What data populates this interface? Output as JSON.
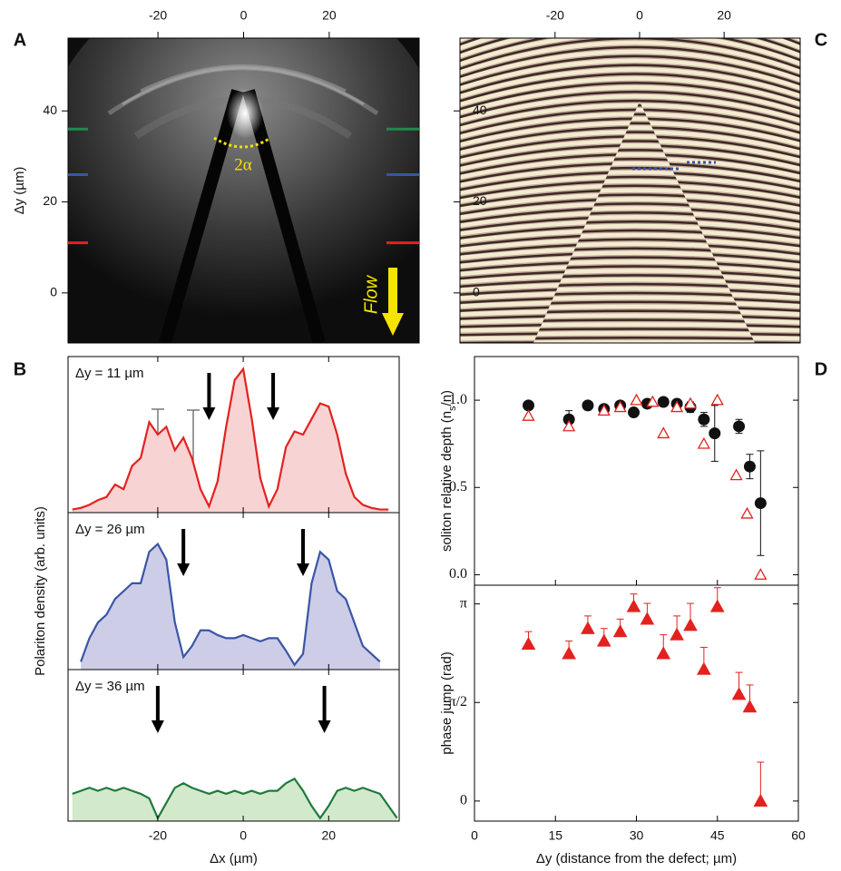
{
  "chart_data": [
    {
      "type": "image",
      "label": "A",
      "xlim": [
        -41,
        41
      ],
      "xticks": [
        -20,
        0,
        20
      ],
      "ylim": [
        -11,
        56
      ],
      "yticks": [
        0,
        20,
        40
      ],
      "ylabel": "Δy (µm)",
      "annotations": [
        "2α",
        "Flow"
      ],
      "profile_marks": {
        "values": [
          11,
          26,
          36
        ],
        "colors": [
          "#e3221f",
          "#3a55a4",
          "#1f8a4c"
        ]
      }
    },
    {
      "type": "image",
      "label": "C",
      "xlim": [
        -42.5,
        38
      ],
      "xticks": [
        -20,
        0,
        20
      ],
      "ylim": [
        -11,
        56
      ],
      "yticks": [
        0,
        20,
        40
      ]
    },
    {
      "type": "area",
      "label": "B",
      "annotation": "Δy = 11 µm",
      "n_label": "n",
      "ns_label": [
        "n",
        "s"
      ],
      "xlim": [
        -41,
        36.5
      ],
      "ylim": [
        0,
        1
      ],
      "x": [
        -40,
        -38,
        -36,
        -34,
        -32,
        -30,
        -28,
        -26,
        -24,
        -22,
        -20,
        -18,
        -16,
        -14,
        -12,
        -10,
        -8,
        -6,
        -4,
        -2,
        0,
        2,
        4,
        6,
        8,
        10,
        12,
        14,
        16,
        18,
        20,
        22,
        24,
        26,
        28,
        30,
        32,
        34,
        36
      ],
      "series": [
        {
          "color": "#e3221f",
          "fill_color": "#f8d3d3",
          "values": [
            0.02,
            0.03,
            0.05,
            0.08,
            0.1,
            0.18,
            0.15,
            0.3,
            0.35,
            0.58,
            0.5,
            0.55,
            0.4,
            0.48,
            0.35,
            0.15,
            0.04,
            0.2,
            0.55,
            0.85,
            0.92,
            0.6,
            0.22,
            0.04,
            0.15,
            0.42,
            0.52,
            0.5,
            0.6,
            0.7,
            0.68,
            0.5,
            0.25,
            0.1,
            0.05,
            0.03,
            0.02,
            0.02,
            null
          ]
        }
      ],
      "arrows": [
        -8,
        7
      ]
    },
    {
      "type": "area",
      "annotation": "Δy = 26 µm",
      "ylabel": "Polariton density (arb. units)",
      "xlim": [
        -41,
        36.5
      ],
      "ylim": [
        0,
        1
      ],
      "x": [
        -40,
        -38,
        -36,
        -34,
        -32,
        -30,
        -28,
        -26,
        -24,
        -22,
        -20,
        -18,
        -16,
        -14,
        -12,
        -10,
        -8,
        -6,
        -4,
        -2,
        0,
        2,
        4,
        6,
        8,
        10,
        12,
        14,
        16,
        18,
        20,
        22,
        24,
        26,
        28,
        30,
        32,
        34,
        36
      ],
      "series": [
        {
          "color": "#3a55a4",
          "fill_color": "#cdcde8",
          "values": [
            null,
            0.05,
            0.2,
            0.3,
            0.35,
            0.45,
            0.5,
            0.55,
            0.55,
            0.75,
            0.8,
            0.7,
            0.3,
            0.08,
            0.15,
            0.25,
            0.25,
            0.22,
            0.2,
            0.2,
            0.22,
            0.2,
            0.18,
            0.2,
            0.2,
            0.12,
            0.03,
            0.1,
            0.55,
            0.75,
            0.7,
            0.5,
            0.45,
            0.3,
            0.15,
            0.1,
            0.05,
            null,
            null
          ]
        }
      ],
      "arrows": [
        -14,
        14
      ]
    },
    {
      "type": "area",
      "annotation": "Δy = 36 µm",
      "xlabel": "Δx (µm)",
      "xlim": [
        -41,
        36.5
      ],
      "xticks": [
        -20,
        0,
        20
      ],
      "ylim": [
        0,
        1
      ],
      "x": [
        -40,
        -38,
        -36,
        -34,
        -32,
        -30,
        -28,
        -26,
        -24,
        -22,
        -20,
        -18,
        -16,
        -14,
        -12,
        -10,
        -8,
        -6,
        -4,
        -2,
        0,
        2,
        4,
        6,
        8,
        10,
        12,
        14,
        16,
        18,
        20,
        22,
        24,
        26,
        28,
        30,
        32,
        34,
        36
      ],
      "series": [
        {
          "color": "#1f7a3c",
          "fill_color": "#d2e9cc",
          "values": [
            0.18,
            0.2,
            0.22,
            0.2,
            0.22,
            0.2,
            0.22,
            0.2,
            0.18,
            0.15,
            0.02,
            0.12,
            0.22,
            0.25,
            0.22,
            0.2,
            0.18,
            0.2,
            0.18,
            0.2,
            0.18,
            0.2,
            0.18,
            0.2,
            0.2,
            0.25,
            0.28,
            0.2,
            0.1,
            0.02,
            0.1,
            0.2,
            0.22,
            0.2,
            0.22,
            0.2,
            0.18,
            0.1,
            0.02
          ]
        }
      ],
      "arrows": [
        -20,
        19
      ]
    },
    {
      "type": "scatter",
      "label": "D",
      "ylabel": [
        "soliton relative depth (n",
        "s",
        "/n)"
      ],
      "ylim": [
        -0.06,
        1.25
      ],
      "yticks": [
        {
          "value": 0,
          "label": "0.0"
        },
        0.5,
        {
          "value": 1,
          "label": "1.0"
        }
      ],
      "series": [
        {
          "color": "#111111",
          "marker": "circle",
          "error_bars": "both",
          "x": [
            10,
            17.5,
            21,
            24,
            27,
            29.5,
            32,
            35,
            37.5,
            40,
            42.5,
            44.5,
            49,
            51,
            53
          ],
          "values": [
            0.97,
            0.89,
            0.97,
            0.95,
            0.97,
            0.93,
            0.98,
            0.99,
            0.98,
            0.96,
            0.89,
            0.81,
            0.85,
            0.62,
            0.41
          ],
          "errors": [
            0.02,
            0.05,
            0.02,
            0.02,
            0.02,
            0.02,
            0.02,
            0.02,
            0.02,
            0.03,
            0.04,
            0.16,
            0.04,
            0.07,
            0.3
          ]
        },
        {
          "color": "#e3221f",
          "marker": "triangle-open",
          "x": [
            10,
            17.5,
            24,
            27,
            30,
            33,
            35,
            37.5,
            40,
            42.5,
            45,
            48.5,
            50.5,
            53
          ],
          "values": [
            0.91,
            0.85,
            0.94,
            0.96,
            1.0,
            0.99,
            0.81,
            0.96,
            0.98,
            0.75,
            1.0,
            0.57,
            0.35,
            0.0
          ]
        }
      ]
    },
    {
      "type": "scatter",
      "ylabel": "phase jump (rad)",
      "xlabel": "Δy (distance from the defect; µm)",
      "xlim": [
        0,
        60
      ],
      "xticks": [
        0,
        15,
        30,
        45,
        60
      ],
      "ylim": [
        -0.32,
        3.44
      ],
      "yticks": [
        0,
        {
          "value": 1.5708,
          "label": "π/2"
        },
        {
          "value": 3.1416,
          "label": "π"
        }
      ],
      "series": [
        {
          "color": "#e3221f",
          "marker": "triangle",
          "error_bars": "up",
          "x": [
            10,
            17.5,
            21,
            24,
            27,
            29.5,
            32,
            35,
            37.5,
            40,
            42.5,
            45,
            49,
            51,
            53
          ],
          "values": [
            2.5,
            2.35,
            2.75,
            2.55,
            2.7,
            3.1,
            2.9,
            2.35,
            2.65,
            2.8,
            2.1,
            3.1,
            1.7,
            1.5,
            0.0
          ],
          "errors": [
            0.2,
            0.2,
            0.2,
            0.2,
            0.2,
            0.2,
            0.25,
            0.3,
            0.3,
            0.35,
            0.35,
            0.3,
            0.35,
            0.35,
            0.62
          ]
        }
      ]
    }
  ]
}
